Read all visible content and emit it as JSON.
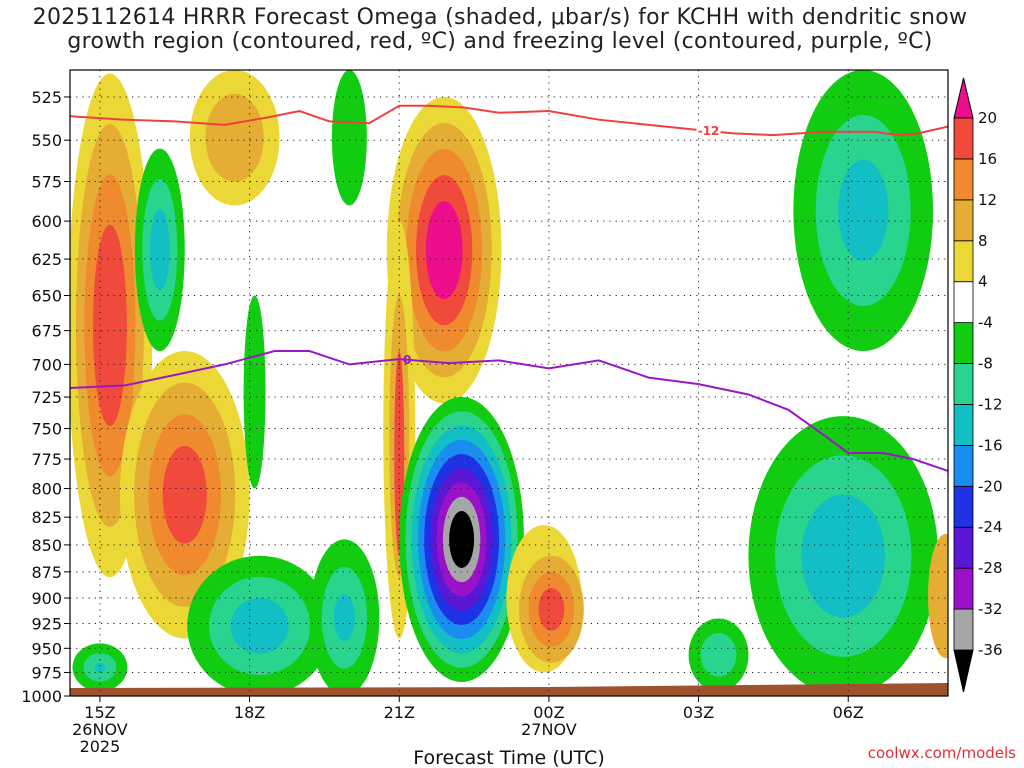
{
  "title_line1": "2025112614 HRRR Forecast Omega (shaded, μbar/s) for KCHH with dendritic snow",
  "title_line2": "growth region (contoured, red, ºC) and freezing level (contoured, purple, ºC)",
  "credit": "coolwx.com/models",
  "chart_data": {
    "type": "heatmap",
    "title": "2025112614 HRRR Forecast Omega (shaded, μbar/s) for KCHH with dendritic snow growth region (contoured, red, ºC) and freezing level (contoured, purple, ºC)",
    "xlabel": "Forecast Time (UTC)",
    "ylabel": "",
    "xlim": [
      14.4,
      32.0
    ],
    "ylim": [
      1000,
      510
    ],
    "x_ticks": [
      {
        "value": 15,
        "label": "15Z",
        "date": "26NOV",
        "year": "2025"
      },
      {
        "value": 18,
        "label": "18Z"
      },
      {
        "value": 21,
        "label": "21Z"
      },
      {
        "value": 24,
        "label": "00Z",
        "date": "27NOV"
      },
      {
        "value": 27,
        "label": "03Z"
      },
      {
        "value": 30,
        "label": "06Z"
      }
    ],
    "y_ticks": [
      525,
      550,
      575,
      600,
      625,
      650,
      675,
      700,
      725,
      750,
      775,
      800,
      825,
      850,
      875,
      900,
      925,
      950,
      975,
      1000
    ],
    "colorbar": {
      "levels": [
        -36,
        -32,
        -28,
        -24,
        -20,
        -16,
        -12,
        -8,
        -4,
        4,
        8,
        12,
        16,
        20
      ],
      "labels": [
        "-36",
        "-32",
        "-28",
        "-24",
        "-20",
        "-16",
        "-12",
        "-8",
        "-4",
        "4",
        "8",
        "12",
        "16",
        "20"
      ],
      "colors": [
        "#000000",
        "#a6a6a6",
        "#9a11c9",
        "#5a18d6",
        "#1f32e6",
        "#1a8ef0",
        "#12bfc4",
        "#2ad38e",
        "#12cc12",
        "#ffffff",
        "#ebd837",
        "#e5ad33",
        "#f08a2e",
        "#f04a3c",
        "#ec0e8a"
      ]
    },
    "contours": [
      {
        "name": "dendritic growth region",
        "value": -12,
        "label": "-12",
        "color": "#f04040",
        "x": [
          14.4,
          15.5,
          16.5,
          17.5,
          18.3,
          19.0,
          19.6,
          20.4,
          21.0,
          21.6,
          22.3,
          23.0,
          24.0,
          25.0,
          26.0,
          27.0,
          27.7,
          28.5,
          29.5,
          30.5,
          31.0,
          31.4,
          32.0
        ],
        "p": [
          536,
          538,
          539,
          541,
          537,
          533,
          539,
          540,
          530,
          530,
          531,
          534,
          533,
          538,
          541,
          544,
          546,
          547,
          545,
          545,
          547,
          546,
          542
        ]
      },
      {
        "name": "freezing level",
        "value": 0,
        "label": "0",
        "color": "#9a18c4",
        "x": [
          14.4,
          15.5,
          16.5,
          17.5,
          18.5,
          19.2,
          20.0,
          21.0,
          22.0,
          23.0,
          24.0,
          25.0,
          26.0,
          27.0,
          28.0,
          28.8,
          29.5,
          30.0,
          30.7,
          31.3,
          32.0
        ],
        "p": [
          718,
          716,
          708,
          700,
          690,
          690,
          700,
          696,
          699,
          697,
          703,
          697,
          710,
          715,
          723,
          735,
          755,
          770,
          770,
          775,
          785
        ]
      }
    ],
    "features": [
      {
        "description": "strongest ascent core",
        "x_center": 22.1,
        "p_center": 852,
        "min_value": -36
      },
      {
        "description": "descent maximum aloft",
        "x_center": 22.0,
        "p_center": 630,
        "max_value": 20
      }
    ]
  }
}
